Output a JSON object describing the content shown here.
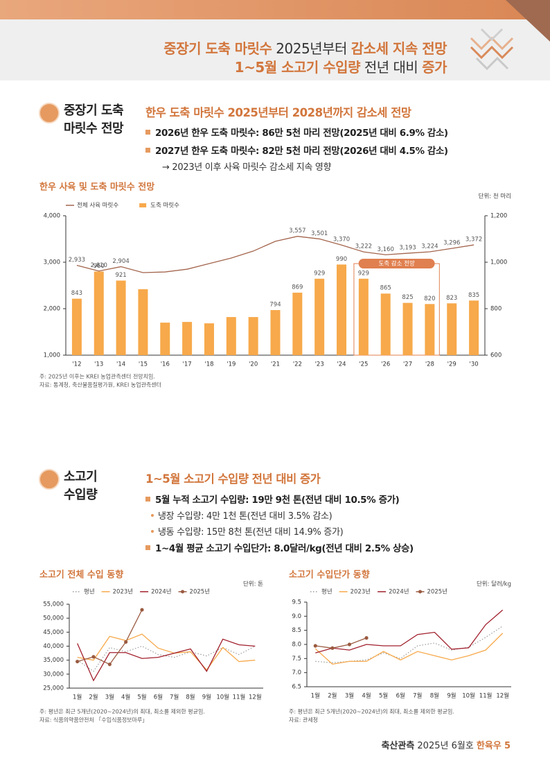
{
  "header": {
    "title_lines": [
      [
        "중장기 도축 마릿수",
        " 2025년부터 ",
        "감소세 지속 전망"
      ],
      [
        "1~5월 소고기 수입량",
        " 전년 대비 ",
        "증가"
      ]
    ]
  },
  "section1": {
    "label": [
      "중장기 도축",
      "마릿수 전망"
    ],
    "heading": "한우 도축 마릿수 2025년부터 2028년까지 감소세 전망",
    "bullets": [
      "2026년 한우 도축 마릿수: 86만 5천 마리 전망(2025년 대비 6.9% 감소)",
      "2027년 한우 도축 마릿수: 82만 5천 마리 전망(2026년 대비 4.5% 감소)"
    ],
    "note": "→ 2023년 이후 사육 마릿수 감소세 지속 영향"
  },
  "section2": {
    "label": [
      "소고기",
      "수입량"
    ],
    "heading": "1~5월 소고기 수입량 전년 대비 증가",
    "bullets": [
      "5월 누적 소고기 수입량: 19만 9천 톤(전년 대비 10.5% 증가)",
      "1~4월 평균 소고기 수입단가: 8.0달러/kg(전년 대비 2.5% 상승)"
    ],
    "sub_bullets": [
      "냉장 수입량: 4만 1천 톤(전년 대비 3.5% 감소)",
      "냉동 수입량: 15만 8천 톤(전년 대비 14.9% 증가)"
    ]
  },
  "chart_data": [
    {
      "type": "bar_line",
      "title": "한우 사육 및 도축 마릿수 전망",
      "unit": "단위: 천 마리",
      "categories": [
        "'12",
        "'13",
        "'14",
        "'15",
        "'16",
        "'17",
        "'18",
        "'19",
        "'20",
        "'21",
        "'22",
        "'23",
        "'24",
        "'25",
        "'26",
        "'27",
        "'28",
        "'29",
        "'30"
      ],
      "series": [
        {
          "name": "전체 사육 마릿수",
          "type": "line",
          "axis": "y",
          "color": "#a3644c",
          "values": [
            2933,
            2810,
            2904,
            2776,
            2790,
            2850,
            2970,
            3090,
            3240,
            3450,
            3557,
            3501,
            3370,
            3222,
            3160,
            3193,
            3224,
            3296,
            3372
          ],
          "value_labels": [
            "2,933",
            "2,810",
            "2,904",
            null,
            null,
            null,
            null,
            null,
            null,
            null,
            "3,557",
            "3,501",
            "3,370",
            "3,222",
            "3,160",
            "3,193",
            "3,224",
            "3,296",
            "3,372"
          ]
        },
        {
          "name": "도축 마릿수",
          "type": "bar",
          "axis": "y2",
          "color": "#f7a94b",
          "values": [
            843,
            960,
            921,
            884,
            740,
            743,
            737,
            764,
            764,
            794,
            869,
            929,
            990,
            929,
            865,
            825,
            820,
            823,
            835
          ],
          "value_labels": [
            "843",
            "960",
            "921",
            null,
            null,
            null,
            null,
            null,
            null,
            "794",
            "869",
            "929",
            "990",
            "929",
            "865",
            "825",
            "820",
            "823",
            "835"
          ]
        }
      ],
      "ylim": [
        1000,
        4000
      ],
      "yticks": [
        {
          "value": 1000,
          "label": "1,000"
        },
        {
          "value": 2000,
          "label": "2,000"
        },
        {
          "value": 3000,
          "label": "3,000"
        },
        {
          "value": 4000,
          "label": "4,000"
        }
      ],
      "y2lim": [
        600,
        1200
      ],
      "y2ticks": [
        600,
        800,
        {
          "value": 1000,
          "label": "1,000"
        },
        {
          "value": 1200,
          "label": "1,200"
        }
      ],
      "annotation": {
        "text": "도축 감소 전망",
        "span": [
          "'25",
          "'28"
        ]
      },
      "notes": [
        "주: 2025년 이후는 KREI 농업관측센터 전망치임.",
        "자료: 통계청, 축산물품질평가원, KREI 농업관측센터"
      ]
    },
    {
      "type": "line",
      "title": "소고기 전체 수입 동향",
      "unit": "단위: 톤",
      "categories": [
        "1월",
        "2월",
        "3월",
        "4월",
        "5월",
        "6월",
        "7월",
        "8월",
        "9월",
        "10월",
        "11월",
        "12월"
      ],
      "series": [
        {
          "name": "평년",
          "color": "#9a9a9a",
          "style": "dotted",
          "values": [
            35000,
            31000,
            39500,
            38000,
            40000,
            37000,
            36000,
            38000,
            36500,
            39500,
            37000,
            40000
          ]
        },
        {
          "name": "2023년",
          "color": "#f7a94b",
          "values": [
            36000,
            35000,
            43500,
            42000,
            44300,
            39300,
            37500,
            38000,
            31500,
            39500,
            34500,
            35000
          ]
        },
        {
          "name": "2024년",
          "color": "#a11f2c",
          "values": [
            41000,
            27700,
            37700,
            37700,
            35600,
            36000,
            37500,
            39000,
            31000,
            42500,
            40500,
            40000
          ]
        },
        {
          "name": "2025년",
          "color": "#9a5a40",
          "markers": true,
          "values": [
            34500,
            36200,
            33500,
            41500,
            53000,
            null,
            null,
            null,
            null,
            null,
            null,
            null
          ]
        }
      ],
      "ylim": [
        25000,
        55000
      ],
      "yticks": [
        {
          "value": 25000,
          "label": "25,000"
        },
        {
          "value": 30000,
          "label": "30,000"
        },
        {
          "value": 35000,
          "label": "35,000"
        },
        {
          "value": 40000,
          "label": "40,000"
        },
        {
          "value": 45000,
          "label": "45,000"
        },
        {
          "value": 50000,
          "label": "50,000"
        },
        {
          "value": 55000,
          "label": "55,000"
        }
      ],
      "notes": [
        "주: 평년은 최근 5개년(2020~2024년)의 최대, 최소를 제외한 평균임.",
        "자료: 식품의약품안전처 「수입식품정보마루」"
      ]
    },
    {
      "type": "line",
      "title": "소고기 수입단가 동향",
      "unit": "단위: 달러/kg",
      "categories": [
        "1월",
        "2월",
        "3월",
        "4월",
        "5월",
        "6월",
        "7월",
        "8월",
        "9월",
        "10월",
        "11월",
        "12월"
      ],
      "series": [
        {
          "name": "평년",
          "color": "#9a9a9a",
          "style": "dotted",
          "values": [
            7.4,
            7.35,
            7.4,
            7.45,
            7.7,
            7.5,
            7.95,
            8.05,
            7.8,
            7.9,
            8.25,
            8.65
          ]
        },
        {
          "name": "2023년",
          "color": "#f7a94b",
          "values": [
            7.85,
            7.3,
            7.4,
            7.4,
            7.75,
            7.45,
            7.75,
            7.6,
            7.45,
            7.6,
            7.8,
            8.4
          ]
        },
        {
          "name": "2024년",
          "color": "#a11f2c",
          "values": [
            7.7,
            7.87,
            7.8,
            8.0,
            7.95,
            7.95,
            8.35,
            8.43,
            7.83,
            7.88,
            8.7,
            9.22
          ]
        },
        {
          "name": "2025년",
          "color": "#9a5a40",
          "markers": true,
          "values": [
            7.95,
            7.87,
            8.0,
            8.23,
            null,
            null,
            null,
            null,
            null,
            null,
            null,
            null
          ]
        }
      ],
      "ylim": [
        6.5,
        9.5
      ],
      "yticks": [
        6.5,
        {
          "value": 7,
          "label": "7.0"
        },
        7.5,
        {
          "value": 8,
          "label": "8.0"
        },
        8.5,
        {
          "value": 9,
          "label": "9.0"
        },
        9.5
      ],
      "notes": [
        "주: 평년은 최근 5개년(2020~2024년)의 최대, 최소를 제외한 평균임.",
        "자료: 관세청"
      ]
    }
  ],
  "footer": [
    "축산관측",
    " 2025년 6월호 ",
    "한육우",
    "5"
  ]
}
